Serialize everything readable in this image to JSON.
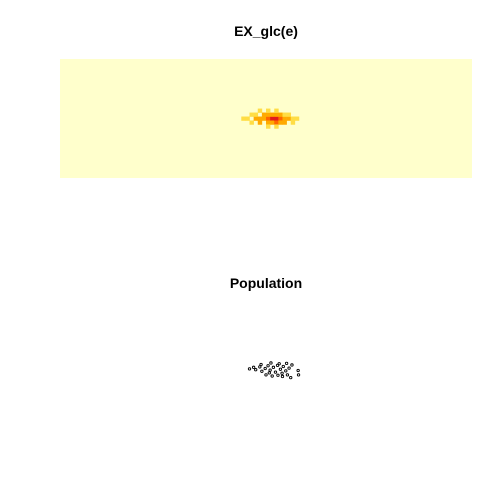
{
  "chart_data": [
    {
      "type": "heatmap",
      "title": "EX_glc(e)",
      "xlabel": "",
      "ylabel": "",
      "grid": false,
      "legend": "none",
      "colors": {
        "background": "#ffffcc",
        "low": "#ffff99",
        "mid_low": "#ffdd44",
        "mid": "#ffaa00",
        "mid_high": "#ff6600",
        "high": "#e31a1c"
      },
      "x_range": [
        0,
        100
      ],
      "y_range": [
        0,
        30
      ],
      "cells": [
        {
          "x": 44.5,
          "y": 15.0,
          "value": 1
        },
        {
          "x": 45.5,
          "y": 15.0,
          "value": 1
        },
        {
          "x": 46.5,
          "y": 16.0,
          "value": 1
        },
        {
          "x": 46.5,
          "y": 14.0,
          "value": 1
        },
        {
          "x": 47.5,
          "y": 15.0,
          "value": 2
        },
        {
          "x": 47.5,
          "y": 16.0,
          "value": 1
        },
        {
          "x": 48.5,
          "y": 15.0,
          "value": 3
        },
        {
          "x": 48.5,
          "y": 14.0,
          "value": 2
        },
        {
          "x": 48.5,
          "y": 17.0,
          "value": 1
        },
        {
          "x": 49.5,
          "y": 15.0,
          "value": 3
        },
        {
          "x": 49.5,
          "y": 16.0,
          "value": 2
        },
        {
          "x": 50.5,
          "y": 15.0,
          "value": 4
        },
        {
          "x": 50.5,
          "y": 14.0,
          "value": 3
        },
        {
          "x": 50.5,
          "y": 16.0,
          "value": 3
        },
        {
          "x": 50.5,
          "y": 17.0,
          "value": 1
        },
        {
          "x": 50.5,
          "y": 13.0,
          "value": 1
        },
        {
          "x": 51.5,
          "y": 15.0,
          "value": 5
        },
        {
          "x": 51.5,
          "y": 16.0,
          "value": 3
        },
        {
          "x": 51.5,
          "y": 14.0,
          "value": 2
        },
        {
          "x": 52.5,
          "y": 15.0,
          "value": 5
        },
        {
          "x": 52.5,
          "y": 14.0,
          "value": 4
        },
        {
          "x": 52.5,
          "y": 16.0,
          "value": 3
        },
        {
          "x": 52.5,
          "y": 13.0,
          "value": 1
        },
        {
          "x": 52.5,
          "y": 17.0,
          "value": 1
        },
        {
          "x": 53.5,
          "y": 15.0,
          "value": 4
        },
        {
          "x": 53.5,
          "y": 16.0,
          "value": 2
        },
        {
          "x": 53.5,
          "y": 14.0,
          "value": 3
        },
        {
          "x": 54.5,
          "y": 15.0,
          "value": 3
        },
        {
          "x": 54.5,
          "y": 14.0,
          "value": 2
        },
        {
          "x": 54.5,
          "y": 16.0,
          "value": 1
        },
        {
          "x": 55.5,
          "y": 15.0,
          "value": 2
        },
        {
          "x": 55.5,
          "y": 16.0,
          "value": 1
        },
        {
          "x": 56.5,
          "y": 15.0,
          "value": 1
        },
        {
          "x": 56.5,
          "y": 14.0,
          "value": 1
        },
        {
          "x": 57.5,
          "y": 15.0,
          "value": 1
        }
      ]
    },
    {
      "type": "scatter",
      "title": "Population",
      "xlabel": "",
      "ylabel": "",
      "grid": false,
      "legend": "none",
      "colors": {
        "points": "#000000"
      },
      "x_range": [
        0,
        100
      ],
      "y_range": [
        0,
        30
      ],
      "points": [
        [
          46.0,
          15.4
        ],
        [
          47.5,
          15.2
        ],
        [
          48.5,
          15.9
        ],
        [
          49.0,
          14.8
        ],
        [
          49.8,
          15.5
        ],
        [
          50.5,
          16.2
        ],
        [
          51.0,
          15.1
        ],
        [
          51.8,
          15.8
        ],
        [
          52.3,
          14.6
        ],
        [
          52.8,
          16.3
        ],
        [
          53.5,
          15.3
        ],
        [
          54.2,
          16.0
        ],
        [
          54.8,
          14.9
        ],
        [
          55.6,
          15.6
        ],
        [
          56.3,
          16.4
        ],
        [
          50.0,
          13.9
        ],
        [
          51.5,
          13.6
        ],
        [
          52.9,
          13.8
        ],
        [
          54.0,
          13.5
        ],
        [
          55.2,
          13.9
        ],
        [
          53.2,
          16.7
        ],
        [
          57.8,
          15.0
        ],
        [
          57.9,
          13.9
        ],
        [
          56.0,
          13.2
        ],
        [
          50.8,
          14.4
        ],
        [
          48.8,
          16.5
        ],
        [
          53.9,
          14.3
        ],
        [
          55.0,
          16.8
        ],
        [
          47.0,
          15.8
        ],
        [
          51.2,
          16.9
        ]
      ]
    }
  ]
}
